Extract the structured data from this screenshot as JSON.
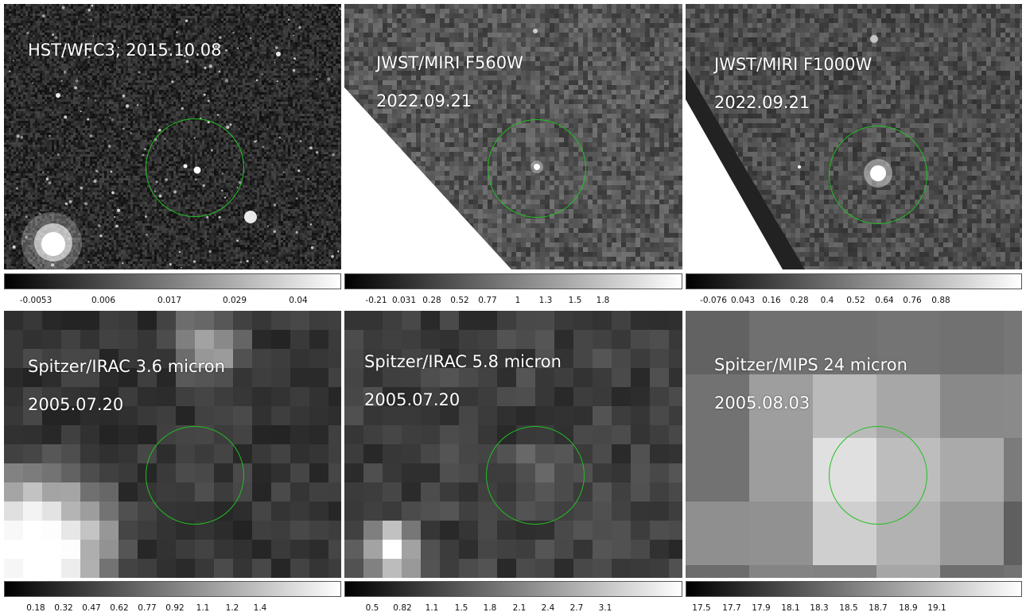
{
  "panels": [
    {
      "id": "hst",
      "label_lines": [
        "HST/WFC3, 2015.10.08"
      ],
      "colorbar_ticks": [
        "-0.0053",
        "0.006",
        "0.017",
        "0.029",
        "0.04"
      ],
      "selected": false
    },
    {
      "id": "miri560",
      "label_lines": [
        "JWST/MIRI F560W",
        "2022.09.21"
      ],
      "colorbar_ticks": [
        "-0.21",
        "0.031",
        "0.28",
        "0.52",
        "0.77",
        "1",
        "1.3",
        "1.5",
        "1.8"
      ],
      "selected": true
    },
    {
      "id": "miri1000",
      "label_lines": [
        "JWST/MIRI F1000W",
        "2022.09.21"
      ],
      "colorbar_ticks": [
        "-0.076",
        "0.043",
        "0.16",
        "0.28",
        "0.4",
        "0.52",
        "0.64",
        "0.76",
        "0.88"
      ],
      "selected": false
    },
    {
      "id": "irac36",
      "label_lines": [
        "Spitzer/IRAC 3.6 micron",
        "2005.07.20"
      ],
      "colorbar_ticks": [
        "0.18",
        "0.32",
        "0.47",
        "0.62",
        "0.77",
        "0.92",
        "1.1",
        "1.2",
        "1.4"
      ],
      "selected": false
    },
    {
      "id": "irac58",
      "label_lines": [
        "Spitzer/IRAC 5.8 micron",
        "2005.07.20"
      ],
      "colorbar_ticks": [
        "0.5",
        "0.82",
        "1.1",
        "1.5",
        "1.8",
        "2.1",
        "2.4",
        "2.7",
        "3.1"
      ],
      "selected": false
    },
    {
      "id": "mips24",
      "label_lines": [
        "Spitzer/MIPS 24 micron",
        "2005.08.03"
      ],
      "colorbar_ticks": [
        "17.5",
        "17.7",
        "17.9",
        "18.1",
        "18.3",
        "18.5",
        "18.7",
        "18.9",
        "19.1"
      ],
      "selected": false
    }
  ],
  "colors": {
    "circle": "#22c022",
    "selection_border": "#1f3bd6",
    "label_text": "#ffffff"
  }
}
